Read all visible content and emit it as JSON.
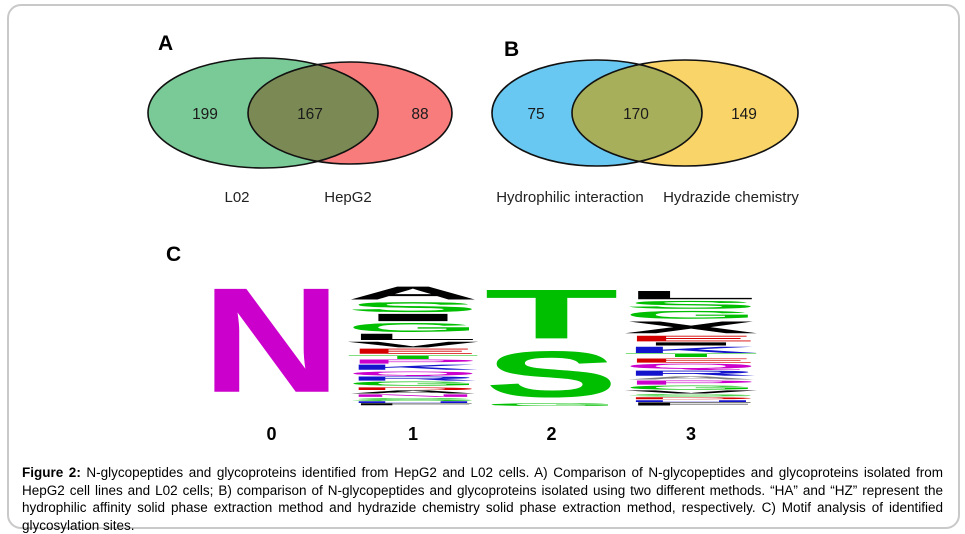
{
  "figure": {
    "panels": {
      "A": {
        "label": "A",
        "venn": {
          "left_label": "L02",
          "right_label": "HepG2",
          "left_value": "199",
          "overlap_value": "167",
          "right_value": "88",
          "left_color": "#7ACA98",
          "right_color": "#F97C7C",
          "overlap_color": "#7B8A55"
        }
      },
      "B": {
        "label": "B",
        "venn": {
          "left_label": "Hydrophilic interaction",
          "right_label": "Hydrazide chemistry",
          "left_value": "75",
          "overlap_value": "170",
          "right_value": "149",
          "left_color": "#69C8F1",
          "right_color": "#F8D469",
          "overlap_color": "#A8AF5B"
        }
      },
      "C": {
        "label": "C",
        "logo": {
          "positions": [
            {
              "label": "0",
              "stack": [
                {
                  "letter": "N",
                  "color": "#CC00CC",
                  "h": 1.0
                }
              ]
            },
            {
              "label": "1",
              "stack": [
                {
                  "letter": "A",
                  "color": "#000000",
                  "h": 0.125
                },
                {
                  "letter": "S",
                  "color": "#00BE00",
                  "h": 0.095
                },
                {
                  "letter": "I",
                  "color": "#000000",
                  "h": 0.07
                },
                {
                  "letter": "G",
                  "color": "#00BE00",
                  "h": 0.085
                },
                {
                  "letter": "L",
                  "color": "#000000",
                  "h": 0.06
                },
                {
                  "letter": "V",
                  "color": "#000000",
                  "h": 0.055
                },
                {
                  "letter": "E",
                  "color": "#D40000",
                  "h": 0.05
                },
                {
                  "letter": "T",
                  "color": "#00BE00",
                  "h": 0.035
                },
                {
                  "letter": "P",
                  "color": "#CC00CC",
                  "h": 0.04
                },
                {
                  "letter": "K",
                  "color": "#1414CC",
                  "h": 0.05
                },
                {
                  "letter": "Q",
                  "color": "#CC00CC",
                  "h": 0.04
                },
                {
                  "letter": "R",
                  "color": "#1414CC",
                  "h": 0.04
                },
                {
                  "letter": "G",
                  "color": "#00BE00",
                  "h": 0.04
                },
                {
                  "letter": "D",
                  "color": "#D40000",
                  "h": 0.03
                },
                {
                  "letter": "A",
                  "color": "#000000",
                  "h": 0.03
                },
                {
                  "letter": "N",
                  "color": "#CC00CC",
                  "h": 0.025
                },
                {
                  "letter": "S",
                  "color": "#00BE00",
                  "h": 0.025
                },
                {
                  "letter": "H",
                  "color": "#1414CC",
                  "h": 0.02
                },
                {
                  "letter": "F",
                  "color": "#000000",
                  "h": 0.02
                }
              ]
            },
            {
              "label": "2",
              "stack": [
                {
                  "letter": "T",
                  "color": "#00BE00",
                  "h": 0.47
                },
                {
                  "letter": "S",
                  "color": "#00BE00",
                  "h": 0.44
                },
                {
                  "letter": "G",
                  "color": "#00BE00",
                  "h": 0.025
                }
              ]
            },
            {
              "label": "3",
              "stack": [
                {
                  "letter": "L",
                  "color": "#000000",
                  "h": 0.08
                },
                {
                  "letter": "S",
                  "color": "#00BE00",
                  "h": 0.075
                },
                {
                  "letter": "G",
                  "color": "#00BE00",
                  "h": 0.075
                },
                {
                  "letter": "X",
                  "color": "#000000",
                  "h": 0.115
                },
                {
                  "letter": "E",
                  "color": "#D40000",
                  "h": 0.055
                },
                {
                  "letter": "I",
                  "color": "#000000",
                  "h": 0.03
                },
                {
                  "letter": "K",
                  "color": "#1414CC",
                  "h": 0.06
                },
                {
                  "letter": "T",
                  "color": "#00BE00",
                  "h": 0.035
                },
                {
                  "letter": "E",
                  "color": "#D40000",
                  "h": 0.04
                },
                {
                  "letter": "Q",
                  "color": "#CC00CC",
                  "h": 0.05
                },
                {
                  "letter": "R",
                  "color": "#1414CC",
                  "h": 0.05
                },
                {
                  "letter": "A",
                  "color": "#808080",
                  "h": 0.03
                },
                {
                  "letter": "P",
                  "color": "#CC00CC",
                  "h": 0.04
                },
                {
                  "letter": "G",
                  "color": "#00BE00",
                  "h": 0.04
                },
                {
                  "letter": "V",
                  "color": "#000000",
                  "h": 0.03
                },
                {
                  "letter": "S",
                  "color": "#00BE00",
                  "h": 0.02
                },
                {
                  "letter": "D",
                  "color": "#D40000",
                  "h": 0.02
                },
                {
                  "letter": "H",
                  "color": "#1414CC",
                  "h": 0.02
                },
                {
                  "letter": "F",
                  "color": "#000000",
                  "h": 0.03
                }
              ]
            }
          ]
        }
      }
    },
    "caption": {
      "label": "Figure 2:",
      "text": " N-glycopeptides and glycoproteins identified from HepG2 and L02 cells. A) Comparison of N-glycopeptides and glycoproteins isolated from HepG2 cell lines and L02 cells; B) comparison of N-glycopeptides and glycoproteins isolated using two different methods. “HA” and “HZ” represent the hydrophilic affinity solid phase extraction method and hydrazide chemistry solid phase extraction method, respectively. C) Motif analysis of identified glycosylation sites."
    }
  },
  "chart_data": [
    {
      "type": "venn",
      "title": "Panel A",
      "sets": [
        "L02",
        "HepG2"
      ],
      "values": {
        "L02_only": 199,
        "overlap": 167,
        "HepG2_only": 88
      }
    },
    {
      "type": "venn",
      "title": "Panel B",
      "sets": [
        "Hydrophilic interaction",
        "Hydrazide chemistry"
      ],
      "values": {
        "hydrophilic_only": 75,
        "overlap": 170,
        "hydrazide_only": 149
      }
    },
    {
      "type": "sequence-logo",
      "title": "Panel C motif analysis",
      "positions": [
        "0",
        "1",
        "2",
        "3"
      ],
      "dominant_letters": [
        "N",
        "A/S/G (mixed)",
        "T/S",
        "L/S/G/X (mixed)"
      ]
    }
  ]
}
